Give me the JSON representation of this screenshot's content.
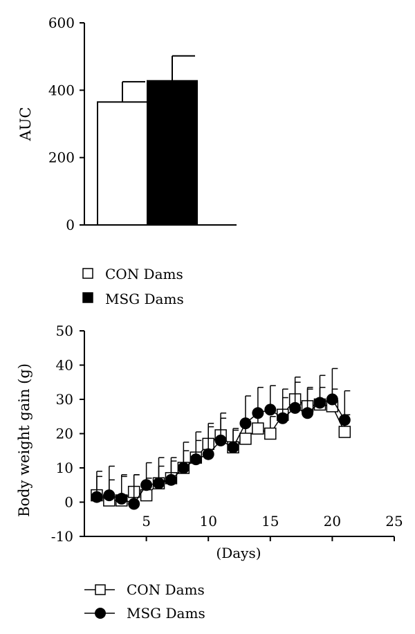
{
  "chart_data": [
    {
      "type": "bar",
      "title": "",
      "xlabel": "",
      "ylabel": "AUC",
      "ylim": [
        0,
        600
      ],
      "yticks": [
        "0",
        "200",
        "400",
        "600"
      ],
      "error_bars": true,
      "grid": false,
      "legend_position": "below",
      "series": [
        {
          "name": "CON Dams",
          "value": 365,
          "error": 60,
          "color": "#ffffff"
        },
        {
          "name": "MSG Dams",
          "value": 428,
          "error": 74,
          "color": "#000000"
        }
      ]
    },
    {
      "type": "line",
      "title": "",
      "xlabel": "(Days)",
      "ylabel": "Body weight gain (g)",
      "xlim": [
        0,
        25
      ],
      "ylim": [
        -10,
        50
      ],
      "xticks": [
        "5",
        "10",
        "15",
        "20",
        "25"
      ],
      "yticks": [
        "-10",
        "0",
        "10",
        "20",
        "30",
        "40",
        "50"
      ],
      "error_bars": true,
      "grid": false,
      "legend_position": "below",
      "series": [
        {
          "name": "CON Dams",
          "marker": "open-square",
          "x": [
            1,
            2,
            3,
            4,
            5,
            6,
            7,
            8,
            9,
            10,
            11,
            12,
            13,
            14,
            15,
            16,
            17,
            18,
            19,
            20,
            21
          ],
          "y": [
            2,
            0.5,
            0.5,
            3,
            2,
            5.5,
            7,
            10,
            13,
            17,
            19.5,
            16,
            18.5,
            21.5,
            20,
            25.5,
            30,
            28,
            28.5,
            28,
            20.5
          ],
          "err": [
            7,
            6,
            7,
            5,
            5,
            5,
            5,
            5,
            5,
            5,
            5,
            5,
            5,
            5,
            5,
            5,
            5,
            5,
            5,
            5,
            5
          ]
        },
        {
          "name": "MSG Dams",
          "marker": "filled-circle",
          "x": [
            1,
            2,
            3,
            4,
            5,
            6,
            7,
            8,
            9,
            10,
            11,
            12,
            13,
            14,
            15,
            16,
            17,
            18,
            19,
            20,
            21
          ],
          "y": [
            1.5,
            2,
            1,
            -0.5,
            5,
            5.5,
            6.5,
            10,
            12.5,
            14,
            18,
            16,
            23,
            26,
            27,
            24.5,
            27.5,
            26,
            29,
            30,
            24
          ],
          "err": [
            6,
            8.5,
            7,
            8.5,
            6.5,
            7.5,
            6.5,
            7.5,
            8,
            9,
            8,
            5.5,
            8,
            7.5,
            7,
            8.5,
            9,
            7.5,
            8,
            9,
            8.5
          ]
        }
      ]
    }
  ]
}
